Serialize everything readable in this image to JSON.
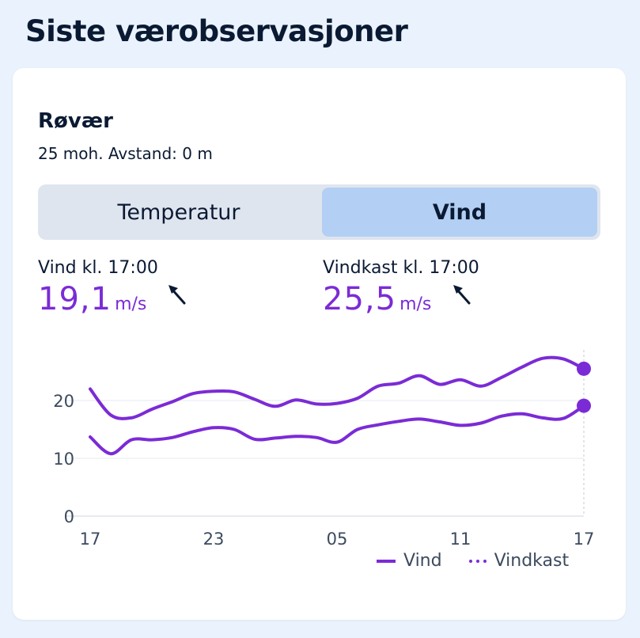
{
  "page": {
    "title": "Siste værobservasjoner"
  },
  "station": {
    "name": "Røvær",
    "meta": "25 moh. Avstand: 0 m"
  },
  "tabs": [
    {
      "label": "Temperatur",
      "selected": false
    },
    {
      "label": "Vind",
      "selected": true
    }
  ],
  "observations": {
    "wind": {
      "label": "Vind kl. 17:00",
      "value": "19,1",
      "unit": "m/s",
      "direction_icon": "arrow-northwest-icon"
    },
    "gust": {
      "label": "Vindkast kl. 17:00",
      "value": "25,5",
      "unit": "m/s",
      "direction_icon": "arrow-northwest-icon"
    }
  },
  "colors": {
    "accent": "#7b2bd6",
    "tab_selected": "#b3cff3",
    "tab_bg": "#dfe5ef",
    "background": "#eaf2fd"
  },
  "chart_data": {
    "type": "line",
    "x_tick_labels": [
      "17",
      "23",
      "05",
      "11",
      "17"
    ],
    "y_ticks": [
      0,
      10,
      20
    ],
    "ylim": [
      0,
      30
    ],
    "grid": true,
    "legend_position": "bottom-right",
    "x": [
      0,
      1,
      2,
      3,
      4,
      5,
      6,
      7,
      8,
      9,
      10,
      11,
      12,
      13,
      14,
      15,
      16,
      17,
      18,
      19,
      20,
      21,
      22,
      23,
      24
    ],
    "series": [
      {
        "name": "Vind",
        "values": [
          13.7,
          10.8,
          13.2,
          13.2,
          13.6,
          14.6,
          15.3,
          15.0,
          13.3,
          13.5,
          13.8,
          13.6,
          12.8,
          15.0,
          15.8,
          16.4,
          16.8,
          16.3,
          15.7,
          16.1,
          17.3,
          17.7,
          17.0,
          16.9,
          19.1
        ]
      },
      {
        "name": "Vindkast",
        "values": [
          22.0,
          17.5,
          17.0,
          18.5,
          19.8,
          21.2,
          21.6,
          21.5,
          20.2,
          19.0,
          20.1,
          19.4,
          19.5,
          20.4,
          22.5,
          23.0,
          24.3,
          22.8,
          23.6,
          22.5,
          24.0,
          25.8,
          27.3,
          27.2,
          25.5
        ]
      }
    ]
  }
}
